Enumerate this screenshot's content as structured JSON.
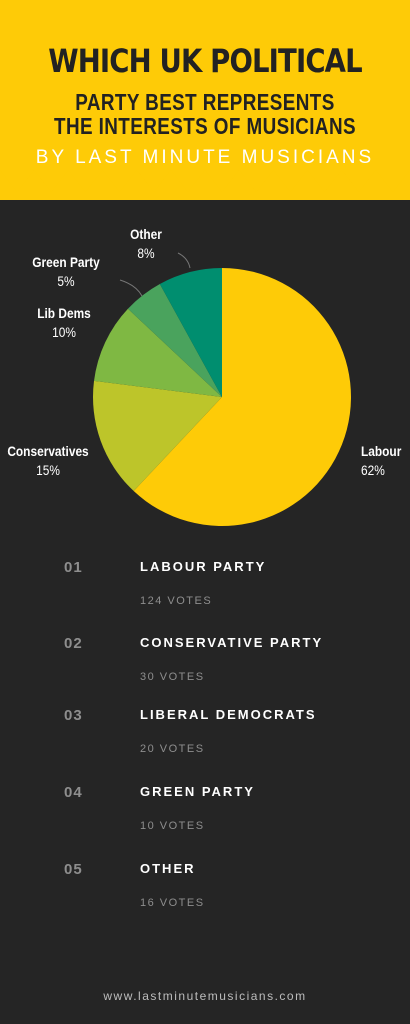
{
  "header": {
    "title_line1": "WHICH UK POLITICAL",
    "title_line2": "PARTY BEST REPRESENTS",
    "title_line3": "THE INTERESTS OF MUSICIANS",
    "byline": "BY LAST MINUTE MUSICIANS"
  },
  "colors": {
    "header_bg": "#fecb07",
    "page_bg": "#252525"
  },
  "chart_data": {
    "type": "pie",
    "slices": [
      {
        "label": "Labour",
        "percent_label": "62%",
        "value": 62,
        "color": "#fecb07"
      },
      {
        "label": "Conservatives",
        "percent_label": "15%",
        "value": 15,
        "color": "#bdc52a"
      },
      {
        "label": "Lib Dems",
        "percent_label": "10%",
        "value": 10,
        "color": "#7fb843"
      },
      {
        "label": "Green Party",
        "percent_label": "5%",
        "value": 5,
        "color": "#4aa35d"
      },
      {
        "label": "Other",
        "percent_label": "8%",
        "value": 8,
        "color": "#008e6f"
      }
    ]
  },
  "results": [
    {
      "rank": "01",
      "name": "LABOUR PARTY",
      "votes": "124 VOTES"
    },
    {
      "rank": "02",
      "name": "CONSERVATIVE PARTY",
      "votes": "30 VOTES"
    },
    {
      "rank": "03",
      "name": "LIBERAL DEMOCRATS",
      "votes": "20 VOTES"
    },
    {
      "rank": "04",
      "name": "GREEN PARTY",
      "votes": "10 VOTES"
    },
    {
      "rank": "05",
      "name": "OTHER",
      "votes": "16 VOTES"
    }
  ],
  "footer": {
    "url": "www.lastminutemusicians.com"
  }
}
